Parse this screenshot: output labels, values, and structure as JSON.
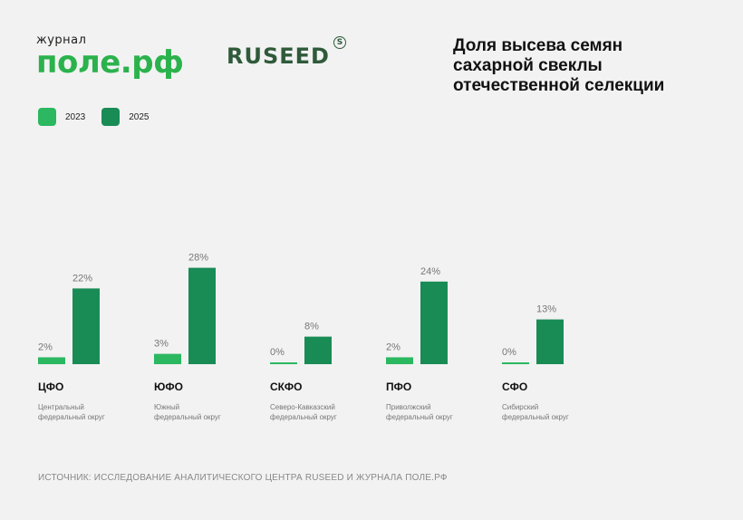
{
  "brand": {
    "pole_small": "журнал",
    "pole_big": "поле.рф",
    "ruseed": "RUSEED",
    "ruseed_mark": "S"
  },
  "title_lines": [
    "Доля высева семян",
    "сахарной свеклы",
    "отечественной селекции"
  ],
  "colors": {
    "y2023": "#2bb860",
    "y2025": "#198c56"
  },
  "legend": [
    {
      "label": "2023",
      "color": "#2bb860"
    },
    {
      "label": "2025",
      "color": "#198c56"
    }
  ],
  "chart_data": {
    "type": "bar",
    "title": "Доля высева семян сахарной свеклы отечественной селекции",
    "categories": [
      "ЦФО",
      "ЮФО",
      "СКФО",
      "ПФО",
      "СФО"
    ],
    "category_descriptions": [
      [
        "Центральный",
        "федеральный округ"
      ],
      [
        "Южный",
        "федеральный округ"
      ],
      [
        "Северо-Кавказский",
        "федеральный округ"
      ],
      [
        "Приволжский",
        "федеральный округ"
      ],
      [
        "Сибирский",
        "федеральный округ"
      ]
    ],
    "series": [
      {
        "name": "2023",
        "values": [
          2,
          3,
          0,
          2,
          0
        ],
        "labels": [
          "2%",
          "3%",
          "0%",
          "2%",
          "0%"
        ]
      },
      {
        "name": "2025",
        "values": [
          22,
          28,
          8,
          24,
          13
        ],
        "labels": [
          "22%",
          "28%",
          "8%",
          "24%",
          "13%"
        ]
      }
    ],
    "unit": "%",
    "legend_position": "top-left",
    "grid": false
  },
  "source": "ИСТОЧНИК: ИССЛЕДОВАНИЕ АНАЛИТИЧЕСКОГО ЦЕНТРА RUSEED И ЖУРНАЛА ПОЛЕ.РФ"
}
